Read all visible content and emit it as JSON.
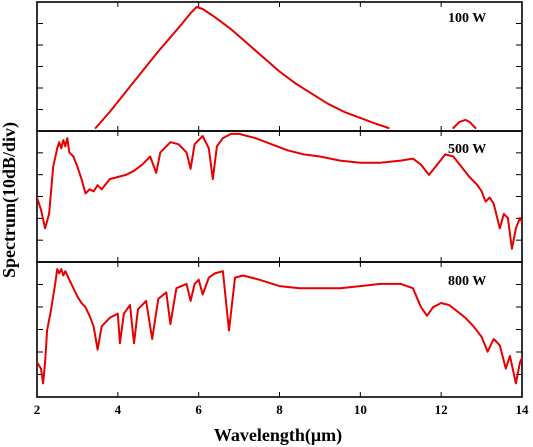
{
  "chart_data": {
    "type": "line",
    "xlabel": "Wavelength(μm)",
    "ylabel": "Spectrum(10dB/div)",
    "xlim": [
      2,
      14
    ],
    "x_ticks": [
      "2",
      "4",
      "6",
      "8",
      "10",
      "12",
      "14"
    ],
    "y_units": "dB relative (10 dB per division), each panel shows 0 (top) to -60 (bottom)",
    "ylim": [
      -60,
      0
    ],
    "panels": [
      {
        "label": "100 W",
        "points": [
          [
            3.45,
            -60
          ],
          [
            3.8,
            -52
          ],
          [
            4.2,
            -42
          ],
          [
            4.6,
            -32
          ],
          [
            5.0,
            -22
          ],
          [
            5.3,
            -15
          ],
          [
            5.6,
            -8
          ],
          [
            5.8,
            -3
          ],
          [
            5.95,
            0
          ],
          [
            6.1,
            -1
          ],
          [
            6.4,
            -5
          ],
          [
            6.8,
            -11
          ],
          [
            7.2,
            -18
          ],
          [
            7.6,
            -25
          ],
          [
            8.0,
            -32
          ],
          [
            8.4,
            -38
          ],
          [
            8.8,
            -43
          ],
          [
            9.2,
            -48
          ],
          [
            9.6,
            -52
          ],
          [
            10.0,
            -55
          ],
          [
            10.4,
            -58
          ],
          [
            10.7,
            -60
          ]
        ],
        "points_b": [
          [
            12.3,
            -60
          ],
          [
            12.45,
            -57
          ],
          [
            12.6,
            -56
          ],
          [
            12.7,
            -57
          ],
          [
            12.85,
            -60
          ]
        ]
      },
      {
        "label": "500 W",
        "points": [
          [
            2.0,
            -30
          ],
          [
            2.1,
            -36
          ],
          [
            2.2,
            -45
          ],
          [
            2.3,
            -38
          ],
          [
            2.4,
            -15
          ],
          [
            2.5,
            -6
          ],
          [
            2.55,
            -3
          ],
          [
            2.6,
            -6
          ],
          [
            2.65,
            -2
          ],
          [
            2.7,
            -5
          ],
          [
            2.75,
            -1
          ],
          [
            2.8,
            -8
          ],
          [
            2.9,
            -10
          ],
          [
            3.0,
            -15
          ],
          [
            3.1,
            -21
          ],
          [
            3.2,
            -28
          ],
          [
            3.3,
            -26
          ],
          [
            3.4,
            -27
          ],
          [
            3.5,
            -24
          ],
          [
            3.6,
            -26
          ],
          [
            3.8,
            -21
          ],
          [
            4.0,
            -20
          ],
          [
            4.2,
            -19
          ],
          [
            4.4,
            -17
          ],
          [
            4.6,
            -14
          ],
          [
            4.8,
            -10
          ],
          [
            4.95,
            -18
          ],
          [
            5.05,
            -8
          ],
          [
            5.3,
            -3
          ],
          [
            5.5,
            -4
          ],
          [
            5.7,
            -8
          ],
          [
            5.8,
            -16
          ],
          [
            5.9,
            -4
          ],
          [
            6.1,
            0
          ],
          [
            6.25,
            -6
          ],
          [
            6.35,
            -21
          ],
          [
            6.45,
            -5
          ],
          [
            6.6,
            -1
          ],
          [
            6.8,
            1
          ],
          [
            7.0,
            1
          ],
          [
            7.4,
            -1
          ],
          [
            7.8,
            -4
          ],
          [
            8.2,
            -7
          ],
          [
            8.6,
            -9
          ],
          [
            9.0,
            -10
          ],
          [
            9.5,
            -12
          ],
          [
            10.0,
            -13
          ],
          [
            10.5,
            -13
          ],
          [
            11.0,
            -12
          ],
          [
            11.3,
            -11
          ],
          [
            11.5,
            -14
          ],
          [
            11.7,
            -19
          ],
          [
            11.9,
            -14
          ],
          [
            12.1,
            -9
          ],
          [
            12.3,
            -10
          ],
          [
            12.5,
            -15
          ],
          [
            12.7,
            -20
          ],
          [
            12.9,
            -24
          ],
          [
            13.0,
            -27
          ],
          [
            13.1,
            -32
          ],
          [
            13.2,
            -30
          ],
          [
            13.3,
            -33
          ],
          [
            13.45,
            -45
          ],
          [
            13.55,
            -38
          ],
          [
            13.65,
            -40
          ],
          [
            13.75,
            -55
          ],
          [
            13.85,
            -45
          ],
          [
            13.95,
            -40
          ],
          [
            14.0,
            -42
          ]
        ]
      },
      {
        "label": "800 W",
        "points": [
          [
            2.0,
            -45
          ],
          [
            2.1,
            -48
          ],
          [
            2.15,
            -55
          ],
          [
            2.2,
            -45
          ],
          [
            2.25,
            -30
          ],
          [
            2.35,
            -20
          ],
          [
            2.45,
            -8
          ],
          [
            2.5,
            -1
          ],
          [
            2.55,
            -3
          ],
          [
            2.6,
            -1
          ],
          [
            2.65,
            -4
          ],
          [
            2.7,
            -2
          ],
          [
            2.8,
            -6
          ],
          [
            2.9,
            -10
          ],
          [
            3.0,
            -14
          ],
          [
            3.1,
            -17
          ],
          [
            3.2,
            -19
          ],
          [
            3.3,
            -23
          ],
          [
            3.4,
            -28
          ],
          [
            3.5,
            -39
          ],
          [
            3.6,
            -28
          ],
          [
            3.8,
            -24
          ],
          [
            4.0,
            -22
          ],
          [
            4.05,
            -36
          ],
          [
            4.15,
            -22
          ],
          [
            4.3,
            -18
          ],
          [
            4.4,
            -36
          ],
          [
            4.5,
            -20
          ],
          [
            4.7,
            -16
          ],
          [
            4.85,
            -34
          ],
          [
            5.0,
            -15
          ],
          [
            5.2,
            -12
          ],
          [
            5.3,
            -27
          ],
          [
            5.45,
            -10
          ],
          [
            5.7,
            -8
          ],
          [
            5.8,
            -16
          ],
          [
            5.9,
            -8
          ],
          [
            6.0,
            -6
          ],
          [
            6.1,
            -13
          ],
          [
            6.25,
            -5
          ],
          [
            6.4,
            -3
          ],
          [
            6.6,
            -2
          ],
          [
            6.75,
            -30
          ],
          [
            6.9,
            -5
          ],
          [
            7.1,
            -4
          ],
          [
            7.5,
            -6
          ],
          [
            8.0,
            -9
          ],
          [
            8.5,
            -10
          ],
          [
            9.0,
            -10
          ],
          [
            9.5,
            -10
          ],
          [
            10.0,
            -9
          ],
          [
            10.5,
            -8
          ],
          [
            11.0,
            -8
          ],
          [
            11.3,
            -10
          ],
          [
            11.5,
            -19
          ],
          [
            11.65,
            -23
          ],
          [
            11.8,
            -19
          ],
          [
            12.0,
            -17
          ],
          [
            12.2,
            -18
          ],
          [
            12.4,
            -21
          ],
          [
            12.6,
            -24
          ],
          [
            12.8,
            -28
          ],
          [
            13.0,
            -33
          ],
          [
            13.15,
            -40
          ],
          [
            13.3,
            -34
          ],
          [
            13.45,
            -37
          ],
          [
            13.6,
            -48
          ],
          [
            13.7,
            -42
          ],
          [
            13.85,
            -55
          ],
          [
            13.95,
            -45
          ],
          [
            14.0,
            -43
          ]
        ]
      }
    ]
  }
}
